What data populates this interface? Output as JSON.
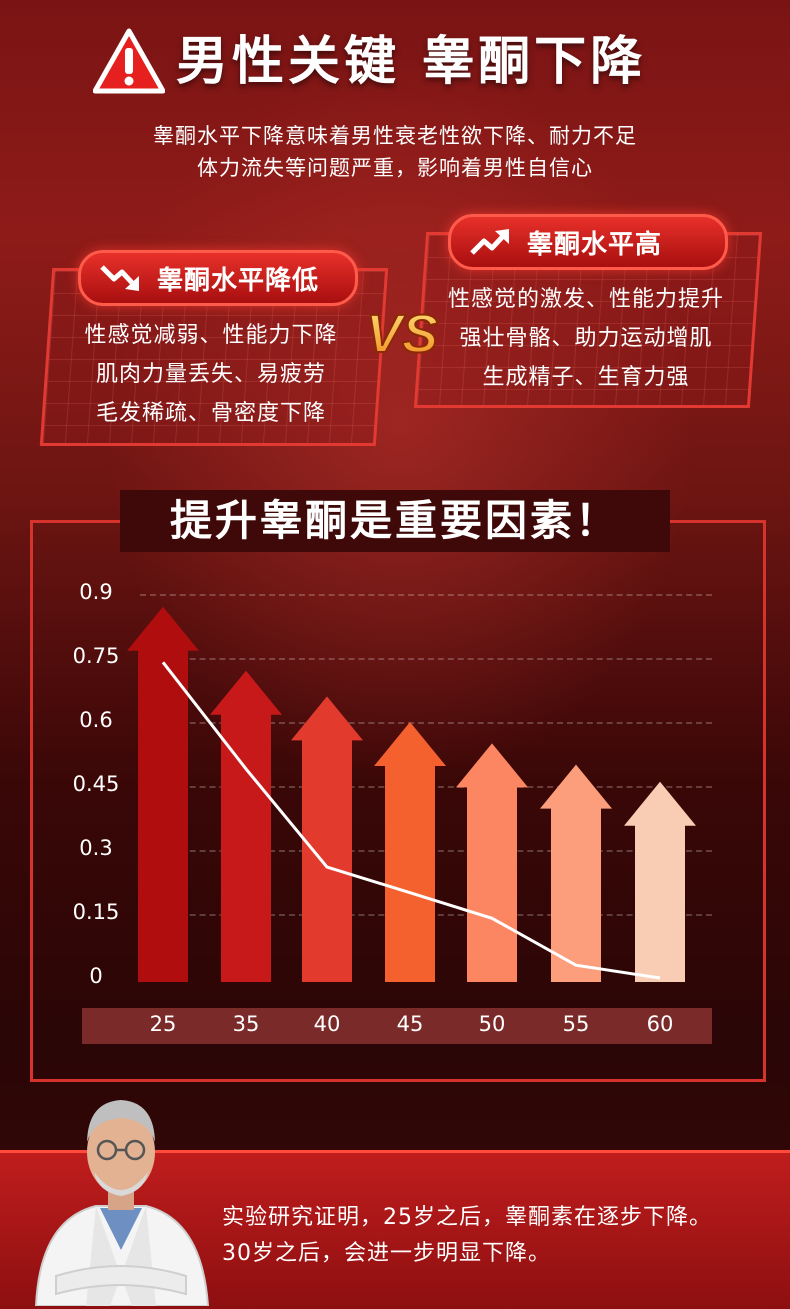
{
  "header": {
    "title": "男性关键 睾酮下降",
    "warning_icon": "warning-triangle-icon"
  },
  "intro": {
    "line1": "睾酮水平下降意味着男性衰老性欲下降、耐力不足",
    "line2": "体力流失等问题严重，影响着男性自信心"
  },
  "low_panel": {
    "label": "睾酮水平降低",
    "icon": "trend-down-icon",
    "lines": [
      "性感觉减弱、性能力下降",
      "肌肉力量丢失、易疲劳",
      "毛发稀疏、骨密度下降"
    ]
  },
  "vs_label": "VS",
  "high_panel": {
    "label": "睾酮水平高",
    "icon": "trend-up-icon",
    "lines": [
      "性感觉的激发、性能力提升",
      "强壮骨骼、助力运动增肌",
      "生成精子、生育力强"
    ]
  },
  "chart_title": "提升睾酮是重要因素！",
  "chart_data": {
    "type": "bar",
    "categories": [
      "25",
      "35",
      "40",
      "45",
      "50",
      "55",
      "60"
    ],
    "values": [
      0.87,
      0.72,
      0.66,
      0.6,
      0.55,
      0.5,
      0.46
    ],
    "line_values": [
      0.74,
      0.49,
      0.26,
      0.2,
      0.14,
      0.03,
      0.0
    ],
    "bar_colors": [
      "#b00d0f",
      "#c8191a",
      "#e23a2d",
      "#f4602e",
      "#fb8661",
      "#fc9e7c",
      "#f9cdb3"
    ],
    "yticks": [
      "0.9",
      "0.75",
      "0.6",
      "0.45",
      "0.3",
      "0.15",
      "0"
    ],
    "ylim": [
      0,
      0.9
    ],
    "grid": true
  },
  "conclusion": {
    "line1": "实验研究证明，25岁之后，睾酮素在逐步下降。",
    "line2": "30岁之后，会进一步明显下降。"
  }
}
